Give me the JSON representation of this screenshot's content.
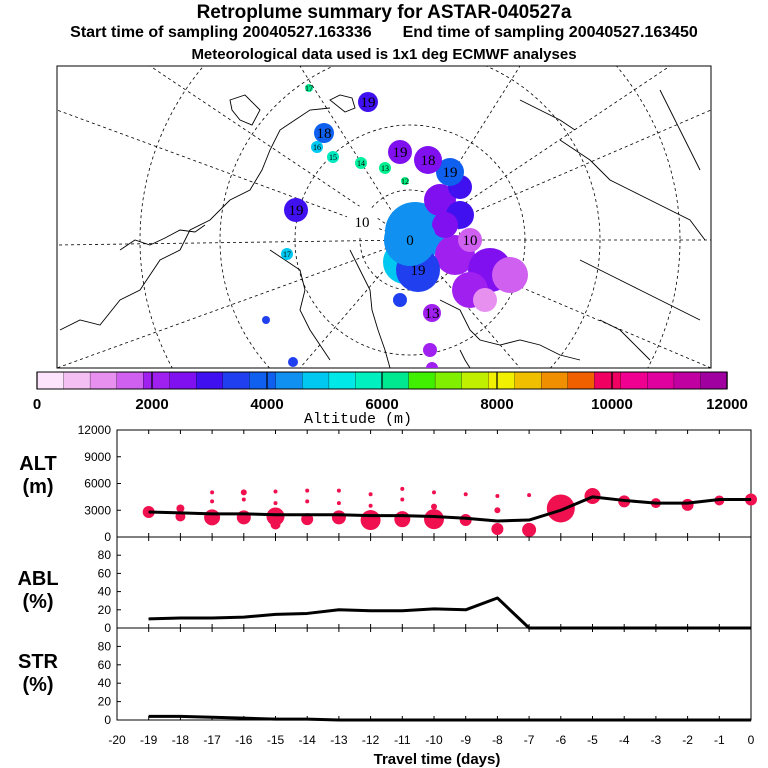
{
  "header": {
    "title": "Retroplume summary for ASTAR-040527a",
    "start_label": "Start time of sampling 20040527.163336",
    "end_label": "End time of sampling 20040527.163450",
    "met_label": "Meteorological data used is 1x1 deg ECMWF analyses"
  },
  "colorbar": {
    "label": "Altitude (m)",
    "ticks": [
      "0",
      "2000",
      "4000",
      "6000",
      "8000",
      "10000",
      "12000"
    ],
    "colors": [
      "#fce4fc",
      "#f4c0f4",
      "#e890f0",
      "#d060f0",
      "#a020f0",
      "#8010f0",
      "#4010f0",
      "#2040f0",
      "#1060f0",
      "#1090f0",
      "#00c8f0",
      "#00e8e8",
      "#00f0c0",
      "#00e890",
      "#40f000",
      "#80f000",
      "#c0f000",
      "#f0f000",
      "#f0c000",
      "#f09000",
      "#f06000",
      "#f00060",
      "#f00090",
      "#e000a0",
      "#c000a0",
      "#a000a0"
    ]
  },
  "map_points": [
    {
      "label": "17",
      "color": "#00e890"
    },
    {
      "label": "19",
      "color": "#4010f0"
    },
    {
      "label": "18",
      "color": "#1060f0"
    },
    {
      "label": "16",
      "color": "#00c8f0"
    },
    {
      "label": "15",
      "color": "#00e8c0"
    },
    {
      "label": "14",
      "color": "#00f0a0"
    },
    {
      "label": "13",
      "color": "#00f090"
    },
    {
      "label": "12",
      "color": "#00f080"
    },
    {
      "label": "19",
      "color": "#8010f0"
    },
    {
      "label": "19",
      "color": "#1060f0"
    },
    {
      "label": "18",
      "color": "#8010f0"
    },
    {
      "label": "19",
      "color": "#4010f0"
    },
    {
      "label": "10",
      "color": "#ffffff"
    },
    {
      "label": "17",
      "color": "#00c8f0"
    },
    {
      "label": "19",
      "color": "#2040f0"
    },
    {
      "label": "10",
      "color": "#d060f0"
    },
    {
      "label": "13",
      "color": "#a020f0"
    },
    {
      "label": "0",
      "color": "#1090f0"
    }
  ],
  "chart_data": [
    {
      "type": "line",
      "panel": "ALT",
      "ylabel": "ALT\n(m)",
      "ylabel_lines": [
        "ALT",
        "(m)"
      ],
      "ylim": [
        0,
        12000
      ],
      "yticks": [
        "0",
        "3000",
        "6000",
        "9000",
        "12000"
      ],
      "x": [
        -19,
        -18,
        -17,
        -16,
        -15,
        -14,
        -13,
        -12,
        -11,
        -10,
        -9,
        -8,
        -7,
        -6,
        -5,
        -4,
        -3,
        -2,
        -1,
        0
      ],
      "values": [
        2800,
        2700,
        2600,
        2600,
        2500,
        2500,
        2500,
        2400,
        2400,
        2300,
        2100,
        1800,
        1900,
        3000,
        4500,
        4100,
        3800,
        3800,
        4200,
        4200
      ],
      "bubbles": [
        {
          "x": -19,
          "y": 2800,
          "s": 6
        },
        {
          "x": -18,
          "y": 2300,
          "s": 5
        },
        {
          "x": -18,
          "y": 3200,
          "s": 4
        },
        {
          "x": -17,
          "y": 2200,
          "s": 8
        },
        {
          "x": -17,
          "y": 4000,
          "s": 2
        },
        {
          "x": -17,
          "y": 5000,
          "s": 2
        },
        {
          "x": -16,
          "y": 2200,
          "s": 7
        },
        {
          "x": -16,
          "y": 4200,
          "s": 2
        },
        {
          "x": -16,
          "y": 5000,
          "s": 3
        },
        {
          "x": -15,
          "y": 1400,
          "s": 5
        },
        {
          "x": -15,
          "y": 2300,
          "s": 9
        },
        {
          "x": -15,
          "y": 3800,
          "s": 2
        },
        {
          "x": -15,
          "y": 5100,
          "s": 2
        },
        {
          "x": -14,
          "y": 2000,
          "s": 6
        },
        {
          "x": -14,
          "y": 4000,
          "s": 2
        },
        {
          "x": -14,
          "y": 5200,
          "s": 2
        },
        {
          "x": -13,
          "y": 2200,
          "s": 7
        },
        {
          "x": -13,
          "y": 3800,
          "s": 2
        },
        {
          "x": -13,
          "y": 5200,
          "s": 2
        },
        {
          "x": -12,
          "y": 1900,
          "s": 10
        },
        {
          "x": -12,
          "y": 3500,
          "s": 2
        },
        {
          "x": -12,
          "y": 4800,
          "s": 2
        },
        {
          "x": -11,
          "y": 2000,
          "s": 8
        },
        {
          "x": -11,
          "y": 4200,
          "s": 2
        },
        {
          "x": -11,
          "y": 5400,
          "s": 2
        },
        {
          "x": -10,
          "y": 2000,
          "s": 10
        },
        {
          "x": -10,
          "y": 3400,
          "s": 3
        },
        {
          "x": -10,
          "y": 5000,
          "s": 2
        },
        {
          "x": -9,
          "y": 1900,
          "s": 6
        },
        {
          "x": -9,
          "y": 4800,
          "s": 2
        },
        {
          "x": -8,
          "y": 900,
          "s": 6
        },
        {
          "x": -8,
          "y": 3000,
          "s": 3
        },
        {
          "x": -8,
          "y": 4600,
          "s": 2
        },
        {
          "x": -7,
          "y": 800,
          "s": 7
        },
        {
          "x": -7,
          "y": 4700,
          "s": 2
        },
        {
          "x": -6,
          "y": 3200,
          "s": 14
        },
        {
          "x": -5,
          "y": 4600,
          "s": 8
        },
        {
          "x": -4,
          "y": 4000,
          "s": 6
        },
        {
          "x": -3,
          "y": 3800,
          "s": 5
        },
        {
          "x": -2,
          "y": 3600,
          "s": 6
        },
        {
          "x": -1,
          "y": 4100,
          "s": 5
        },
        {
          "x": 0,
          "y": 4200,
          "s": 6
        }
      ]
    },
    {
      "type": "line",
      "panel": "ABL",
      "ylabel": "ABL\n(%)",
      "ylabel_lines": [
        "ABL",
        "(%)"
      ],
      "ylim": [
        0,
        100
      ],
      "yticks": [
        "0",
        "20",
        "40",
        "60",
        "80"
      ],
      "x": [
        -19,
        -18,
        -17,
        -16,
        -15,
        -14,
        -13,
        -12,
        -11,
        -10,
        -9,
        -8,
        -7,
        -6,
        -5,
        -4,
        -3,
        -2,
        -1,
        0
      ],
      "values": [
        10,
        11,
        11,
        12,
        15,
        16,
        20,
        19,
        19,
        21,
        20,
        33,
        0,
        0,
        0,
        0,
        0,
        0,
        0,
        0
      ]
    },
    {
      "type": "line",
      "panel": "STR",
      "ylabel": "STR\n(%)",
      "ylabel_lines": [
        "STR",
        "(%)"
      ],
      "ylim": [
        0,
        100
      ],
      "yticks": [
        "0",
        "20",
        "40",
        "60",
        "80"
      ],
      "x": [
        -19,
        -18,
        -17,
        -16,
        -15,
        -14,
        -13,
        -12,
        -11,
        -10,
        -9,
        -8,
        -7,
        -6,
        -5,
        -4,
        -3,
        -2,
        -1,
        0
      ],
      "values": [
        4,
        4,
        3,
        2,
        1,
        1,
        0,
        0,
        0,
        0,
        0,
        0,
        0,
        0,
        0,
        0,
        0,
        0,
        0,
        0
      ]
    }
  ],
  "xaxis": {
    "label": "Travel time (days)",
    "range": [
      -20,
      0
    ],
    "ticklabels": [
      "-20",
      "-19",
      "-18",
      "-17",
      "-16",
      "-15",
      "-14",
      "-13",
      "-12",
      "-11",
      "-10",
      "-9",
      "-8",
      "-7",
      "-6",
      "-5",
      "-4",
      "-3",
      "-2",
      "-1",
      "0"
    ]
  }
}
